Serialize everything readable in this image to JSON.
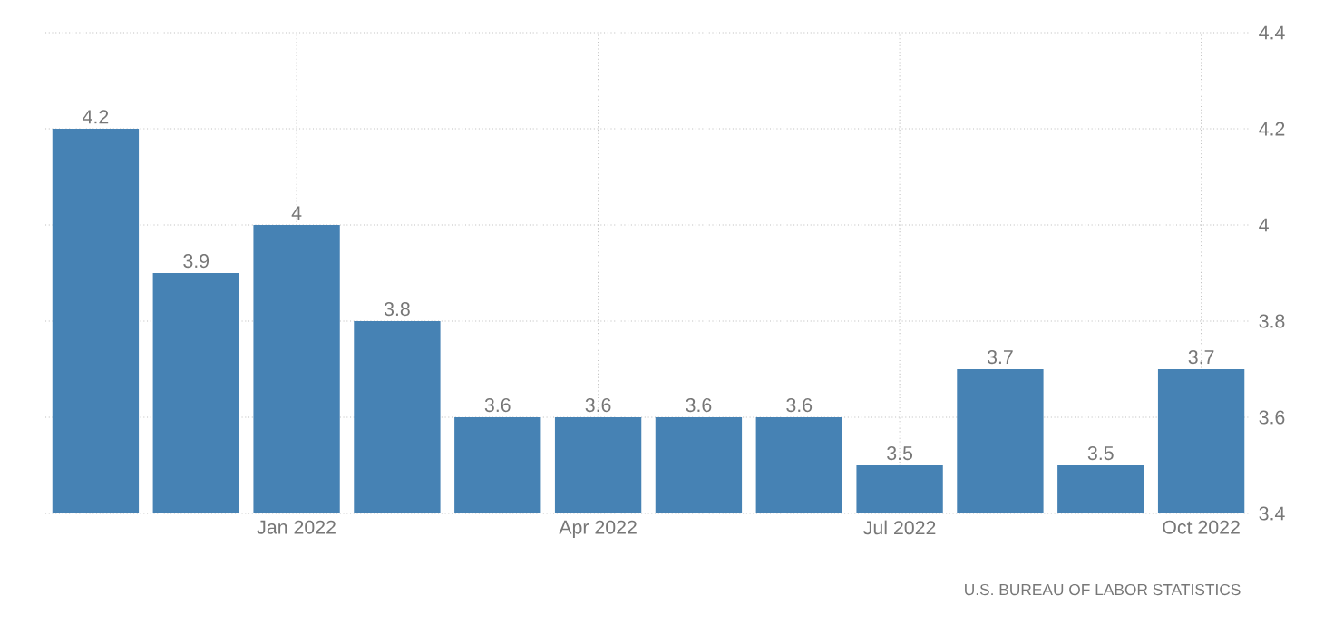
{
  "chart_data": {
    "type": "bar",
    "categories": [
      null,
      null,
      "Jan 2022",
      null,
      null,
      "Apr 2022",
      null,
      null,
      "Jul 2022",
      null,
      null,
      "Oct 2022"
    ],
    "values": [
      4.2,
      3.9,
      4,
      3.8,
      3.6,
      3.6,
      3.6,
      3.6,
      3.5,
      3.7,
      3.5,
      3.7
    ],
    "color": "#4682b4",
    "ylim": [
      3.4,
      4.4
    ],
    "yticks": [
      3.4,
      3.6,
      3.8,
      4,
      4.2,
      4.4
    ],
    "grid": true,
    "data_labels": true,
    "annotations": [
      "U.S. BUREAU OF LABOR STATISTICS"
    ]
  }
}
